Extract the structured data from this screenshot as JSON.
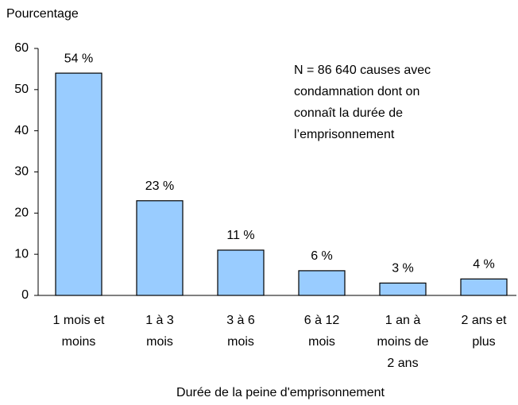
{
  "chart_data": {
    "type": "bar",
    "y_axis_label": "Pourcentage",
    "x_axis_label": "Durée de la peine d'emprisonnement",
    "annotation": [
      "N = 86 640 causes avec",
      "condamnation dont on",
      "connaît la durée de",
      "l’emprisonnement"
    ],
    "categories": [
      [
        "1 mois et",
        "moins"
      ],
      [
        "1 à 3",
        "mois"
      ],
      [
        "3 à 6",
        "mois"
      ],
      [
        "6 à 12",
        "mois"
      ],
      [
        "1 an à",
        "moins de",
        "2 ans"
      ],
      [
        "2 ans et",
        "plus"
      ]
    ],
    "values": [
      54,
      23,
      11,
      6,
      3,
      4
    ],
    "value_labels": [
      "54 %",
      "23 %",
      "11 %",
      "6 %",
      "3 %",
      "4 %"
    ],
    "color": "#99ccff",
    "ylim": [
      0,
      60
    ],
    "yticks": [
      0,
      10,
      20,
      30,
      40,
      50,
      60
    ],
    "grid": false
  }
}
